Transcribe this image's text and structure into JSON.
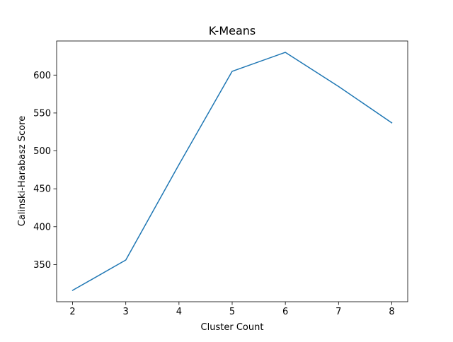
{
  "chart_data": {
    "type": "line",
    "title": "K-Means",
    "xlabel": "Cluster Count",
    "ylabel": "Calinski-Harabasz Score",
    "x": [
      2,
      3,
      4,
      5,
      6,
      7,
      8
    ],
    "series": [
      {
        "values": [
          316,
          356,
          482,
          605,
          630,
          585,
          537
        ],
        "color": "#1f77b4"
      }
    ],
    "xlim": [
      1.7,
      8.3
    ],
    "ylim": [
      301,
      645
    ],
    "xticks": [
      2,
      3,
      4,
      5,
      6,
      7,
      8
    ],
    "yticks": [
      350,
      400,
      450,
      500,
      550,
      600
    ],
    "grid": false,
    "legend": "none"
  }
}
